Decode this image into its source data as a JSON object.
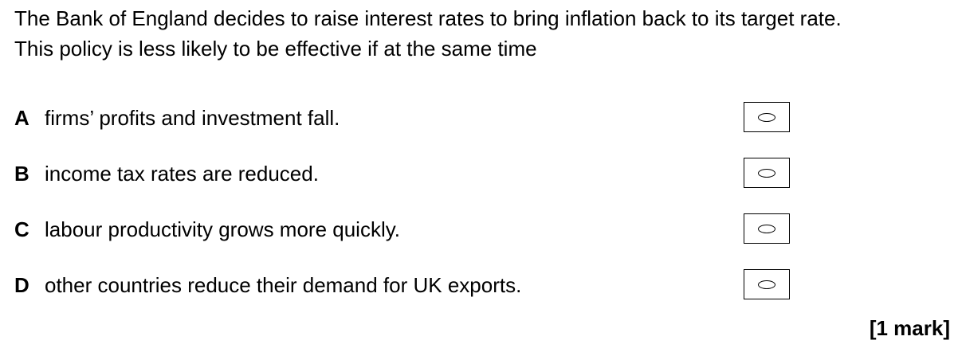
{
  "question": {
    "line1": "The Bank of England decides to raise interest rates to bring inflation back to its target rate.",
    "line2": "This policy is less likely to be effective if at the same time"
  },
  "options": [
    {
      "letter": "A",
      "text": "firms’ profits and investment fall."
    },
    {
      "letter": "B",
      "text": "income tax rates are reduced."
    },
    {
      "letter": "C",
      "text": "labour productivity grows more quickly."
    },
    {
      "letter": "D",
      "text": "other countries reduce their demand for UK exports."
    }
  ],
  "marks": "[1 mark]"
}
